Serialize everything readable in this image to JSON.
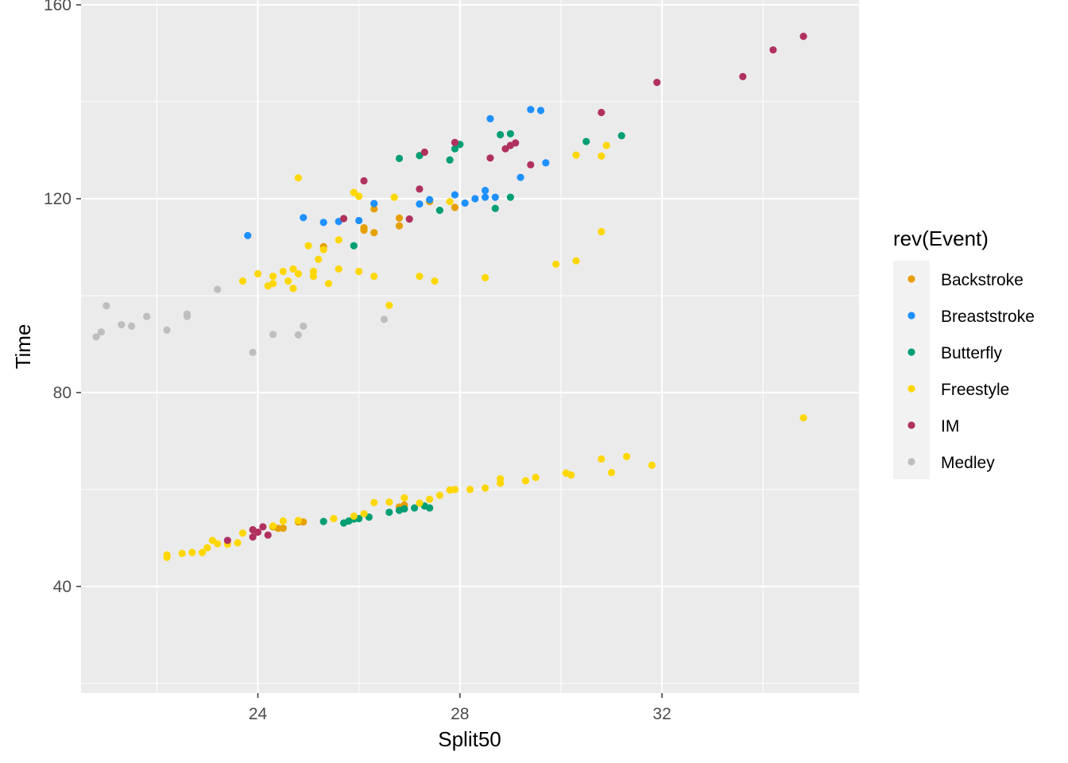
{
  "chart_data": {
    "type": "scatter",
    "xlabel": "Split50",
    "ylabel": "Time",
    "xlim": [
      20.5,
      35.9
    ],
    "ylim": [
      18,
      161
    ],
    "x_ticks": [
      24,
      28,
      32
    ],
    "y_ticks": [
      40,
      80,
      120,
      160
    ],
    "grid": true,
    "legend": {
      "title": "rev(Event)",
      "position": "right",
      "entries": [
        "Backstroke",
        "Breaststroke",
        "Butterfly",
        "Freestyle",
        "IM",
        "Medley"
      ]
    },
    "colors": {
      "Backstroke": "#E69F00",
      "Breaststroke": "#1E90FF",
      "Butterfly": "#009E73",
      "Freestyle": "#FFD700",
      "IM": "#B03060",
      "Medley": "#BEBEBE"
    },
    "series": [
      {
        "name": "Backstroke",
        "points": [
          [
            24.3,
            52.3
          ],
          [
            24.4,
            52.0
          ],
          [
            24.5,
            52.0
          ],
          [
            24.8,
            53.3
          ],
          [
            24.9,
            53.3
          ],
          [
            25.3,
            110.1
          ],
          [
            26.1,
            114.0
          ],
          [
            26.1,
            113.5
          ],
          [
            26.3,
            113.0
          ],
          [
            26.3,
            117.9
          ],
          [
            26.8,
            114.4
          ],
          [
            26.8,
            116.0
          ],
          [
            27.4,
            119.4
          ],
          [
            27.9,
            118.2
          ],
          [
            26.8,
            56.4
          ],
          [
            26.9,
            56.8
          ]
        ]
      },
      {
        "name": "Breaststroke",
        "points": [
          [
            23.8,
            112.4
          ],
          [
            24.9,
            116.1
          ],
          [
            25.3,
            115.1
          ],
          [
            25.6,
            115.3
          ],
          [
            26.0,
            115.5
          ],
          [
            26.3,
            119.0
          ],
          [
            27.2,
            118.9
          ],
          [
            27.4,
            119.8
          ],
          [
            27.9,
            120.8
          ],
          [
            28.1,
            119.1
          ],
          [
            28.3,
            120.0
          ],
          [
            28.5,
            120.3
          ],
          [
            28.5,
            121.7
          ],
          [
            28.6,
            136.5
          ],
          [
            28.7,
            120.3
          ],
          [
            29.2,
            124.4
          ],
          [
            29.4,
            138.4
          ],
          [
            29.6,
            138.2
          ],
          [
            29.7,
            127.4
          ]
        ]
      },
      {
        "name": "Butterfly",
        "points": [
          [
            25.3,
            53.4
          ],
          [
            25.7,
            53.1
          ],
          [
            25.8,
            53.5
          ],
          [
            25.9,
            53.9
          ],
          [
            26.0,
            54.0
          ],
          [
            26.2,
            54.3
          ],
          [
            26.6,
            55.3
          ],
          [
            26.8,
            55.7
          ],
          [
            26.9,
            56.0
          ],
          [
            27.1,
            56.2
          ],
          [
            27.3,
            56.6
          ],
          [
            27.4,
            56.2
          ],
          [
            25.9,
            110.3
          ],
          [
            26.8,
            128.3
          ],
          [
            27.2,
            128.9
          ],
          [
            27.6,
            117.6
          ],
          [
            27.8,
            128.0
          ],
          [
            27.9,
            130.3
          ],
          [
            28.0,
            131.2
          ],
          [
            28.7,
            118.0
          ],
          [
            28.8,
            133.2
          ],
          [
            29.0,
            133.4
          ],
          [
            29.0,
            120.3
          ],
          [
            30.5,
            131.8
          ],
          [
            31.2,
            133.0
          ]
        ]
      },
      {
        "name": "Freestyle",
        "points": [
          [
            22.2,
            46.0
          ],
          [
            22.2,
            46.5
          ],
          [
            22.5,
            46.8
          ],
          [
            22.7,
            47.0
          ],
          [
            22.9,
            47.0
          ],
          [
            23.0,
            48.0
          ],
          [
            23.1,
            49.5
          ],
          [
            23.2,
            48.8
          ],
          [
            23.4,
            48.7
          ],
          [
            23.6,
            49.0
          ],
          [
            23.7,
            51.0
          ],
          [
            24.3,
            52.5
          ],
          [
            24.5,
            53.5
          ],
          [
            24.8,
            53.6
          ],
          [
            25.5,
            54.0
          ],
          [
            25.9,
            54.5
          ],
          [
            26.1,
            55.0
          ],
          [
            26.3,
            57.3
          ],
          [
            26.6,
            57.4
          ],
          [
            26.9,
            58.3
          ],
          [
            27.2,
            57.2
          ],
          [
            27.4,
            58.0
          ],
          [
            27.6,
            58.8
          ],
          [
            27.8,
            59.9
          ],
          [
            27.9,
            60.0
          ],
          [
            28.2,
            60.0
          ],
          [
            28.5,
            60.3
          ],
          [
            28.8,
            61.3
          ],
          [
            28.8,
            62.2
          ],
          [
            29.3,
            61.8
          ],
          [
            29.5,
            62.5
          ],
          [
            30.1,
            63.4
          ],
          [
            30.2,
            63.0
          ],
          [
            30.8,
            66.3
          ],
          [
            31.0,
            63.5
          ],
          [
            31.3,
            66.8
          ],
          [
            31.8,
            65.0
          ],
          [
            34.8,
            74.8
          ],
          [
            23.7,
            103.0
          ],
          [
            24.0,
            104.5
          ],
          [
            24.2,
            102.0
          ],
          [
            24.3,
            104.0
          ],
          [
            24.3,
            102.5
          ],
          [
            24.5,
            105.0
          ],
          [
            24.6,
            103.0
          ],
          [
            24.7,
            101.5
          ],
          [
            24.7,
            105.5
          ],
          [
            24.8,
            104.5
          ],
          [
            25.0,
            110.3
          ],
          [
            25.1,
            105.0
          ],
          [
            25.1,
            104.0
          ],
          [
            25.2,
            107.5
          ],
          [
            25.3,
            109.5
          ],
          [
            25.4,
            102.5
          ],
          [
            25.6,
            111.5
          ],
          [
            25.6,
            105.5
          ],
          [
            25.9,
            121.3
          ],
          [
            26.0,
            120.5
          ],
          [
            26.0,
            105.0
          ],
          [
            26.3,
            104.0
          ],
          [
            26.6,
            98.0
          ],
          [
            26.7,
            120.3
          ],
          [
            27.2,
            104.0
          ],
          [
            27.5,
            103.0
          ],
          [
            27.8,
            119.4
          ],
          [
            28.5,
            103.7
          ],
          [
            29.9,
            106.5
          ],
          [
            30.3,
            107.2
          ],
          [
            30.3,
            129.0
          ],
          [
            30.8,
            128.8
          ],
          [
            30.8,
            113.2
          ],
          [
            30.9,
            131.0
          ],
          [
            24.8,
            124.3
          ]
        ]
      },
      {
        "name": "IM",
        "points": [
          [
            23.4,
            49.5
          ],
          [
            23.9,
            50.2
          ],
          [
            23.9,
            51.7
          ],
          [
            24.0,
            51.2
          ],
          [
            24.1,
            52.3
          ],
          [
            24.2,
            50.6
          ],
          [
            25.7,
            115.9
          ],
          [
            26.1,
            123.7
          ],
          [
            27.0,
            115.8
          ],
          [
            27.2,
            122.0
          ],
          [
            27.3,
            129.6
          ],
          [
            27.9,
            131.6
          ],
          [
            28.6,
            128.4
          ],
          [
            28.9,
            130.3
          ],
          [
            29.0,
            131.0
          ],
          [
            29.1,
            131.5
          ],
          [
            29.4,
            127.0
          ],
          [
            30.8,
            137.8
          ],
          [
            31.9,
            144.0
          ],
          [
            33.6,
            145.2
          ],
          [
            34.2,
            150.7
          ],
          [
            34.8,
            153.5
          ]
        ]
      },
      {
        "name": "Medley",
        "points": [
          [
            20.8,
            91.5
          ],
          [
            20.9,
            92.5
          ],
          [
            21.0,
            97.9
          ],
          [
            21.3,
            94.0
          ],
          [
            21.5,
            93.7
          ],
          [
            21.8,
            95.7
          ],
          [
            22.2,
            92.9
          ],
          [
            22.6,
            96.2
          ],
          [
            22.6,
            95.7
          ],
          [
            23.2,
            101.3
          ],
          [
            23.9,
            88.3
          ],
          [
            24.3,
            92.0
          ],
          [
            24.8,
            91.9
          ],
          [
            24.9,
            93.7
          ],
          [
            26.5,
            95.1
          ]
        ]
      }
    ]
  }
}
